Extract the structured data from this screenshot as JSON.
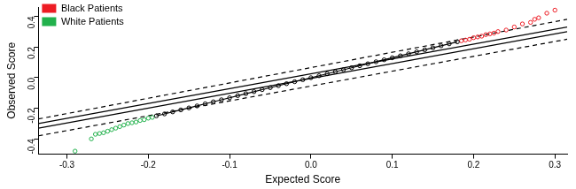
{
  "chart_data": {
    "type": "scatter",
    "x_label": "Expected Score",
    "y_label": "Observed Score",
    "xlim": [
      -0.335,
      0.315
    ],
    "ylim": [
      -0.5,
      0.46
    ],
    "xticks": [
      -0.3,
      -0.2,
      -0.1,
      {
        "value": 0,
        "label": "0.0"
      },
      0.1,
      0.2,
      0.3
    ],
    "yticks": [
      -0.4,
      -0.2,
      {
        "value": 0,
        "label": "0.0"
      },
      0.2,
      0.4
    ],
    "grid": false,
    "legend": "top-left",
    "series": [
      {
        "type": "line",
        "line_style": "dashed",
        "color": "#000000",
        "x": [
          -0.335,
          0.315
        ],
        "values": [
          -0.27,
          0.38
        ]
      },
      {
        "type": "line",
        "line_style": "dashed",
        "color": "#000000",
        "x": [
          -0.335,
          0.315
        ],
        "values": [
          -0.38,
          0.25
        ]
      },
      {
        "type": "line",
        "line_style": "solid",
        "color": "#000000",
        "x": [
          -0.335,
          0.315
        ],
        "values": [
          -0.3,
          0.33
        ]
      },
      {
        "type": "line",
        "line_style": "solid",
        "color": "#000000",
        "x": [
          -0.335,
          0.315
        ],
        "values": [
          -0.33,
          0.3
        ]
      },
      {
        "type": "scatter",
        "marker": "circle_open",
        "line_style": "solid",
        "color": "#000000",
        "x": [
          -0.19,
          -0.18,
          -0.17,
          -0.16,
          -0.15,
          -0.14,
          -0.13,
          -0.12,
          -0.11,
          -0.1,
          -0.09,
          -0.08,
          -0.07,
          -0.06,
          -0.05,
          -0.04,
          -0.03,
          -0.02,
          -0.01,
          0,
          0.01,
          0.02,
          0.03,
          0.04,
          0.05,
          0.06,
          0.07,
          0.08,
          0.09,
          0.1,
          0.11,
          0.12,
          0.13,
          0.14,
          0.15,
          0.16,
          0.17,
          0.18
        ],
        "values": [
          -0.25,
          -0.237,
          -0.224,
          -0.211,
          -0.198,
          -0.185,
          -0.171,
          -0.158,
          -0.145,
          -0.132,
          -0.118,
          -0.105,
          -0.092,
          -0.079,
          -0.066,
          -0.053,
          -0.04,
          -0.027,
          -0.014,
          -0.001,
          0.012,
          0.025,
          0.038,
          0.051,
          0.064,
          0.077,
          0.09,
          0.103,
          0.116,
          0.129,
          0.142,
          0.155,
          0.168,
          0.181,
          0.194,
          0.207,
          0.22,
          0.233
        ]
      },
      {
        "name": "Black Patients",
        "type": "scatter",
        "marker": "circle_open",
        "color": "#ed1c24",
        "x": [
          0.185,
          0.19,
          0.195,
          0.2,
          0.205,
          0.21,
          0.215,
          0.22,
          0.225,
          0.23,
          0.24,
          0.25,
          0.26,
          0.27,
          0.275,
          0.28,
          0.29,
          0.3
        ],
        "values": [
          0.24,
          0.245,
          0.25,
          0.26,
          0.265,
          0.27,
          0.28,
          0.285,
          0.29,
          0.3,
          0.31,
          0.33,
          0.35,
          0.36,
          0.38,
          0.39,
          0.42,
          0.44
        ]
      },
      {
        "name": "White Patients",
        "type": "scatter",
        "marker": "circle_open",
        "color": "#22b14c",
        "x": [
          -0.29,
          -0.27,
          -0.265,
          -0.26,
          -0.255,
          -0.25,
          -0.245,
          -0.24,
          -0.235,
          -0.23,
          -0.225,
          -0.22,
          -0.215,
          -0.21,
          -0.205,
          -0.2,
          -0.195
        ],
        "values": [
          -0.48,
          -0.4,
          -0.37,
          -0.365,
          -0.36,
          -0.35,
          -0.34,
          -0.33,
          -0.32,
          -0.31,
          -0.3,
          -0.295,
          -0.29,
          -0.28,
          -0.275,
          -0.265,
          -0.26
        ]
      }
    ]
  }
}
